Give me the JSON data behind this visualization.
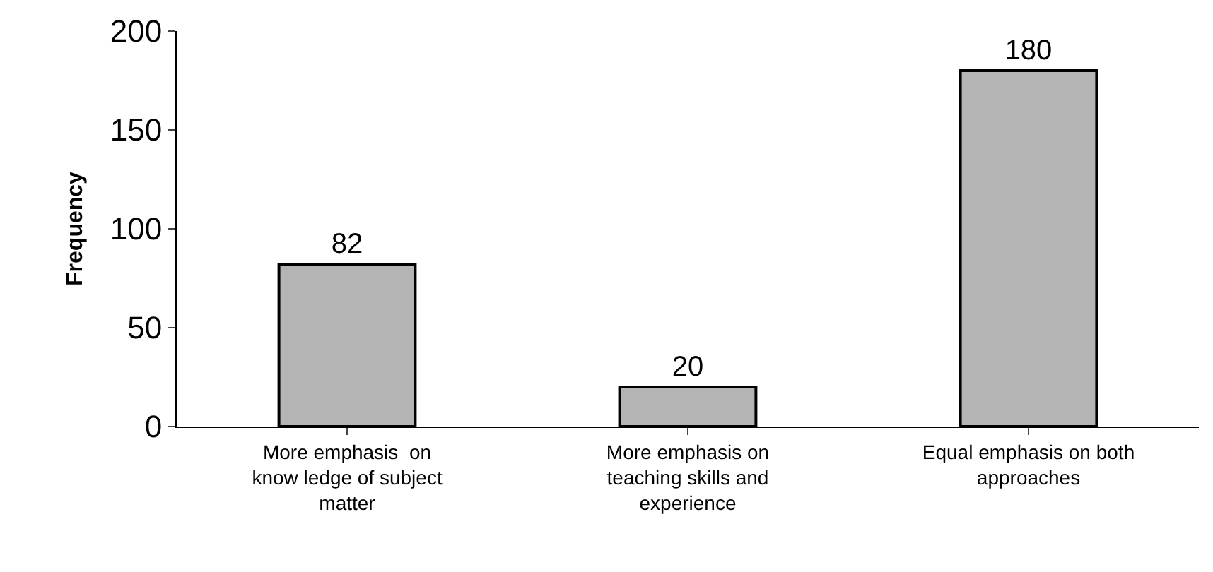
{
  "chart_data": {
    "type": "bar",
    "ylabel": "Frequency",
    "categories": [
      "More emphasis  on\nknow ledge of subject\nmatter",
      "More emphasis on\nteaching skills and\nexperience",
      "Equal emphasis on both\napproaches"
    ],
    "values": [
      82,
      20,
      180
    ],
    "color": "#b4b4b4",
    "ylim": [
      0,
      200
    ],
    "yticks": [
      0,
      50,
      100,
      150,
      200
    ],
    "data_labels": true
  }
}
